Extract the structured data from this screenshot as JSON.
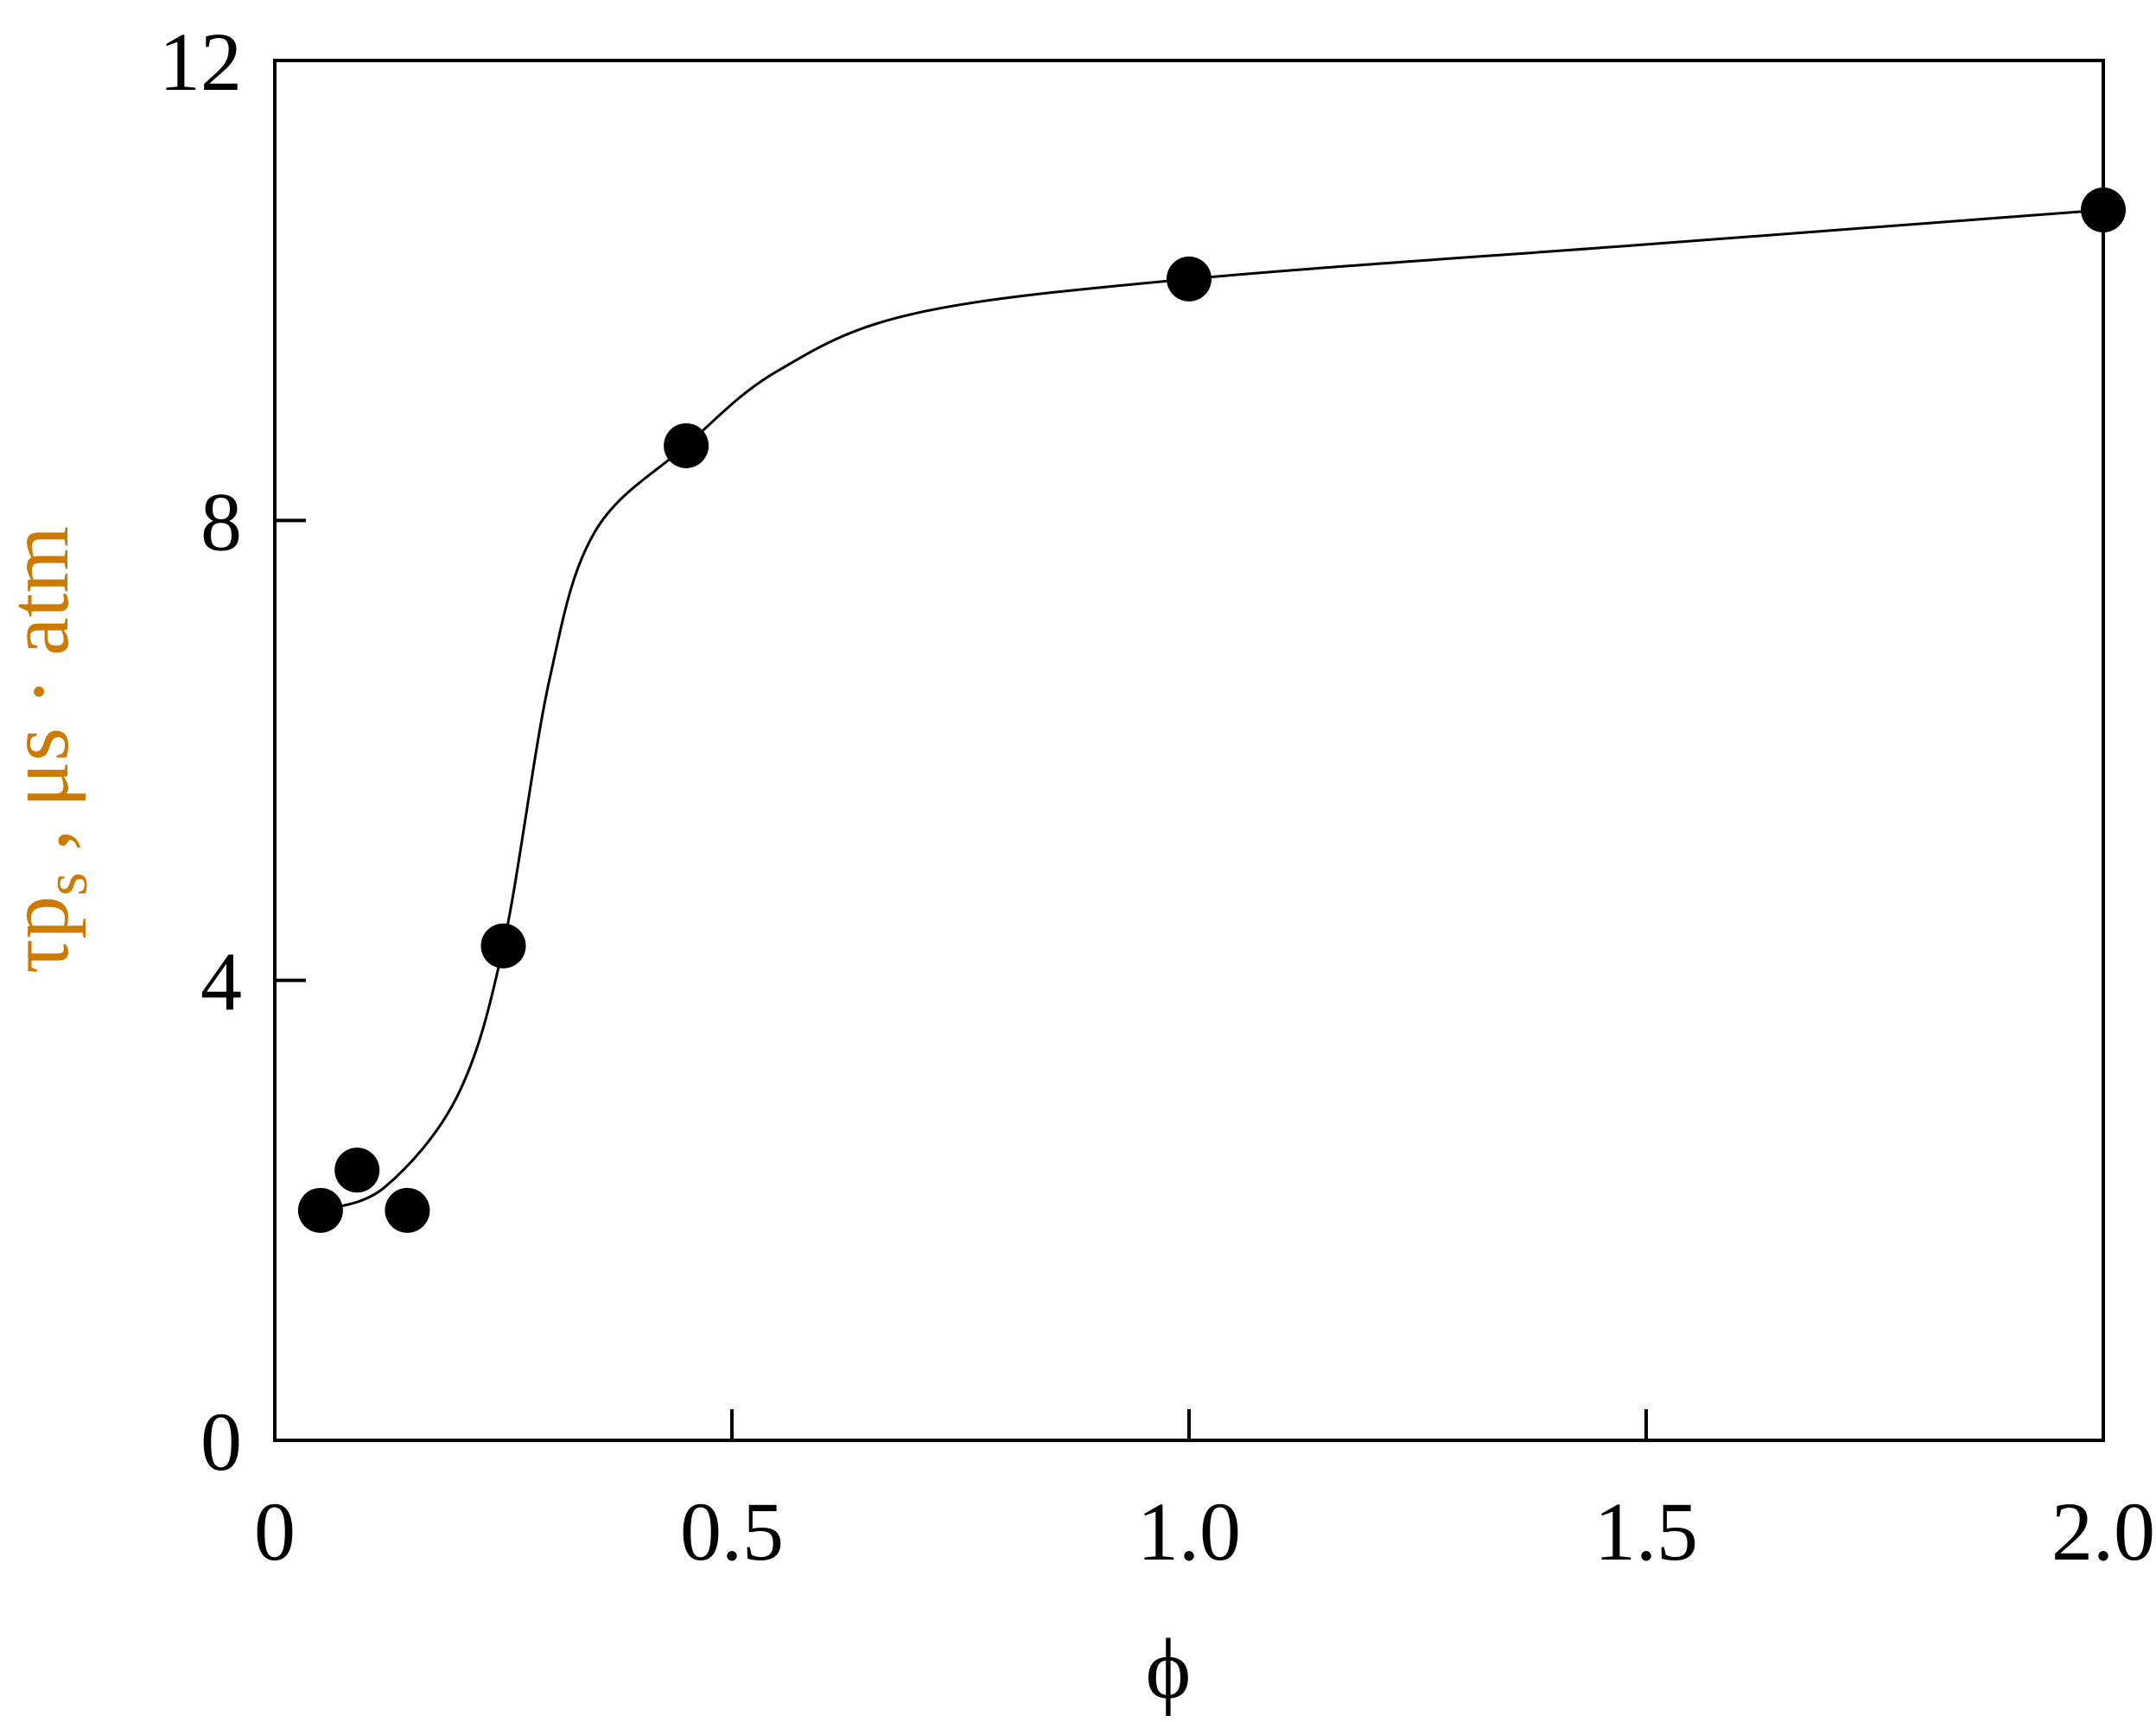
{
  "chart_data": {
    "type": "scatter",
    "title": "",
    "xlabel": "ϕ",
    "ylabel": {
      "main": "τp",
      "subscript": "s",
      "rest": " , μs · atm"
    },
    "xlim": [
      0,
      2.0
    ],
    "ylim": [
      0,
      12
    ],
    "x_ticks": [
      0,
      0.5,
      1.0,
      1.5,
      2.0
    ],
    "x_tick_labels": [
      "0",
      "0.5",
      "1.0",
      "1.5",
      "2.0"
    ],
    "y_ticks": [
      0,
      4,
      8,
      12
    ],
    "y_tick_labels": [
      "0",
      "4",
      "8",
      "12"
    ],
    "grid": false,
    "series": [
      {
        "points": [
          {
            "x": 0.05,
            "y": 2.0
          },
          {
            "x": 0.09,
            "y": 2.35
          },
          {
            "x": 0.145,
            "y": 2.0
          },
          {
            "x": 0.25,
            "y": 4.3
          },
          {
            "x": 0.45,
            "y": 8.65
          },
          {
            "x": 1.0,
            "y": 10.1
          },
          {
            "x": 2.0,
            "y": 10.7
          }
        ]
      }
    ],
    "fit_curve": [
      [
        0.05,
        2.0
      ],
      [
        0.12,
        2.2
      ],
      [
        0.2,
        3.0
      ],
      [
        0.25,
        4.3
      ],
      [
        0.3,
        6.6
      ],
      [
        0.35,
        7.9
      ],
      [
        0.45,
        8.65
      ],
      [
        0.55,
        9.3
      ],
      [
        0.7,
        9.8
      ],
      [
        1.0,
        10.1
      ],
      [
        1.5,
        10.4
      ],
      [
        2.0,
        10.7
      ]
    ],
    "colors": {
      "axes": "#000000",
      "markers": "#000000",
      "curve": "#000000",
      "ylabel": "#cc7a00",
      "xlabel": "#000000"
    }
  }
}
